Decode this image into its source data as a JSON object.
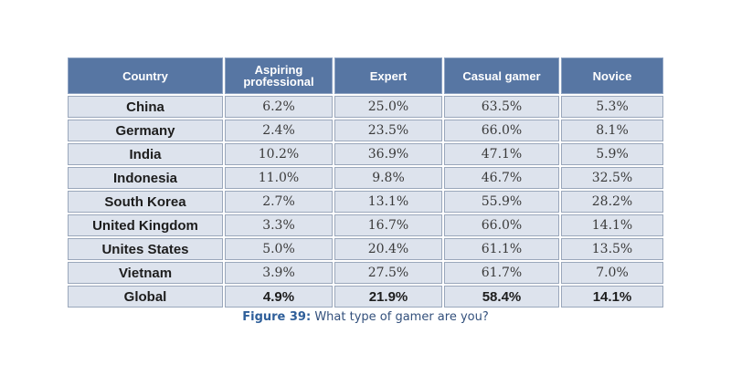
{
  "table": {
    "headers": [
      "Country",
      "Aspiring professional",
      "Expert",
      "Casual gamer",
      "Novice"
    ],
    "rows": [
      {
        "country": "China",
        "values": [
          "6.2%",
          "25.0%",
          "63.5%",
          "5.3%"
        ]
      },
      {
        "country": "Germany",
        "values": [
          "2.4%",
          "23.5%",
          "66.0%",
          "8.1%"
        ]
      },
      {
        "country": "India",
        "values": [
          "10.2%",
          "36.9%",
          "47.1%",
          "5.9%"
        ]
      },
      {
        "country": "Indonesia",
        "values": [
          "11.0%",
          "9.8%",
          "46.7%",
          "32.5%"
        ]
      },
      {
        "country": "South Korea",
        "values": [
          "2.7%",
          "13.1%",
          "55.9%",
          "28.2%"
        ]
      },
      {
        "country": "United Kingdom",
        "values": [
          "3.3%",
          "16.7%",
          "66.0%",
          "14.1%"
        ]
      },
      {
        "country": "Unites States",
        "values": [
          "5.0%",
          "20.4%",
          "61.1%",
          "13.5%"
        ]
      },
      {
        "country": "Vietnam",
        "values": [
          "3.9%",
          "27.5%",
          "61.7%",
          "7.0%"
        ]
      }
    ],
    "global": {
      "country": "Global",
      "values": [
        "4.9%",
        "21.9%",
        "58.4%",
        "14.1%"
      ]
    }
  },
  "caption": {
    "label": "Figure 39:",
    "text": "What type of gamer are you?"
  },
  "colors": {
    "header_bg": "#5776a3",
    "cell_bg": "#dde3ed",
    "caption_label": "#2f5f9a"
  }
}
